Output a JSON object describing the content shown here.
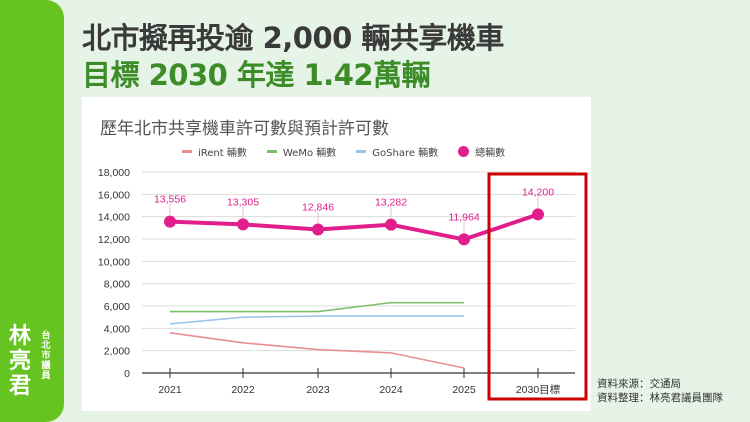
{
  "headline": {
    "line1": "北市擬再投逾 2,000 輛共享機車",
    "line2": "目標 2030 年達 1.42萬輛"
  },
  "author": {
    "name": "林亮君",
    "role": "台北市議員"
  },
  "source": {
    "line1": "資料來源：交通局",
    "line2": "資料整理：林亮君議員團隊"
  },
  "colors": {
    "sidebar": "#66c421",
    "background": "#e6f3e7",
    "irent": "#e8908f",
    "wemo": "#7cbf6b",
    "goshare": "#9ec3e8",
    "total": "#e01e8c",
    "highlight_box": "#cc0000"
  },
  "chart_data": {
    "type": "line",
    "title": "歷年北市共享機車許可數與預計許可數",
    "xlabel": "",
    "ylabel": "",
    "categories": [
      "2021",
      "2022",
      "2023",
      "2024",
      "2025",
      "2030目標"
    ],
    "ylim": [
      0,
      18000
    ],
    "yticks": [
      0,
      2000,
      4000,
      6000,
      8000,
      10000,
      12000,
      14000,
      16000,
      18000
    ],
    "ytick_labels": [
      "0",
      "2,000",
      "4,000",
      "6,000",
      "8,000",
      "10,000",
      "12,000",
      "14,000",
      "16,000",
      "18,000"
    ],
    "grid": true,
    "legend_position": "top",
    "series": [
      {
        "name": "iRent 輛數",
        "values": [
          3600,
          2700,
          2100,
          1800,
          450,
          null
        ],
        "style": "line"
      },
      {
        "name": "WeMo 輛數",
        "values": [
          5500,
          5500,
          5500,
          6300,
          6300,
          null
        ],
        "style": "line"
      },
      {
        "name": "GoShare 輛數",
        "values": [
          4400,
          5000,
          5100,
          5100,
          5100,
          null
        ],
        "style": "line"
      },
      {
        "name": "總輛數",
        "values": [
          13556,
          13305,
          12846,
          13282,
          11964,
          14200
        ],
        "style": "line-markers",
        "labels": [
          "13,556",
          "13,305",
          "12,846",
          "13,282",
          "11,964",
          "14,200"
        ]
      }
    ],
    "annotations": [
      "red box highlighting 2030目標"
    ]
  }
}
